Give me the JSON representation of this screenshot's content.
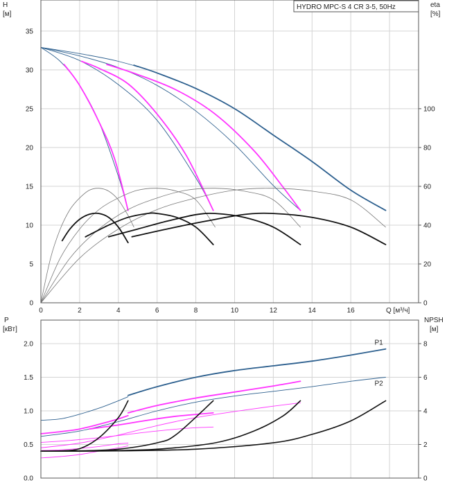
{
  "chart_data": [
    {
      "type": "line",
      "title": "HYDRO MPC-S 4 CR 3-5, 50Hz",
      "ylabel": "H",
      "yunit": "[м]",
      "y2label": "eta",
      "y2unit": "[%]",
      "xlabel": "Q [м³/ч]",
      "xlim": [
        0,
        19.5
      ],
      "ylim": [
        0,
        39
      ],
      "y2lim": [
        0,
        156
      ],
      "xticks": [
        "0",
        "2",
        "4",
        "6",
        "8",
        "10",
        "12",
        "14",
        "16"
      ],
      "yticks": [
        "0",
        "5",
        "10",
        "15",
        "20",
        "25",
        "30",
        "35"
      ],
      "y2ticks": [
        "0",
        "20",
        "40",
        "60",
        "80",
        "100"
      ],
      "grid": true,
      "colors": {
        "head_full": "#2c5f8e",
        "head_duty": "#ff33ff",
        "eta_thin": "#777777",
        "eta_thick": "#111111"
      },
      "series": [
        {
          "kind": "head-thin",
          "x": [
            0,
            2,
            4,
            6,
            8,
            10,
            12,
            14,
            16,
            17.8
          ],
          "y": [
            32.9,
            32.1,
            31.1,
            29.6,
            27.6,
            25.0,
            21.6,
            18.2,
            14.5,
            11.9
          ]
        },
        {
          "kind": "head-thin",
          "x": [
            0,
            2,
            4,
            6,
            8,
            10,
            12,
            13.4
          ],
          "y": [
            32.9,
            31.8,
            30.3,
            28.0,
            24.7,
            20.4,
            15.1,
            11.9
          ]
        },
        {
          "kind": "head-thin",
          "x": [
            0,
            2,
            4,
            6,
            8,
            8.9
          ],
          "y": [
            32.9,
            31.2,
            28.1,
            23.5,
            16.1,
            11.9
          ]
        },
        {
          "kind": "head-thin",
          "x": [
            0,
            1,
            2,
            3,
            4,
            4.5
          ],
          "y": [
            32.9,
            31.1,
            28.0,
            23.3,
            16.3,
            11.9
          ]
        },
        {
          "kind": "head-main",
          "x": [
            4.8,
            6,
            8,
            10,
            12,
            14,
            16,
            17.8
          ],
          "y": [
            30.6,
            29.6,
            27.6,
            25.0,
            21.6,
            18.2,
            14.5,
            11.9
          ]
        },
        {
          "kind": "head-duty",
          "x": [
            3.4,
            5,
            7,
            9,
            11,
            12.5,
            13.4
          ],
          "y": [
            30.7,
            29.4,
            27.4,
            24.3,
            19.6,
            14.9,
            11.9
          ]
        },
        {
          "kind": "head-duty",
          "x": [
            2.1,
            3,
            4.5,
            6,
            7.5,
            8.9
          ],
          "y": [
            31.1,
            30.2,
            28.2,
            24.3,
            19.0,
            11.9
          ]
        },
        {
          "kind": "head-duty",
          "x": [
            1.2,
            2,
            3,
            3.8,
            4.5
          ],
          "y": [
            30.7,
            28.0,
            23.3,
            18.6,
            11.9
          ]
        },
        {
          "kind": "eta-thin",
          "x": [
            0,
            0.5,
            1,
            1.5,
            2,
            2.5,
            3,
            3.5,
            4,
            4.5,
            4.8
          ],
          "y": [
            0,
            23,
            38,
            48,
            54,
            58,
            59,
            57.5,
            53,
            45,
            39
          ]
        },
        {
          "kind": "eta-thin",
          "x": [
            0,
            1,
            2,
            3,
            4,
            5,
            6,
            7,
            8,
            9
          ],
          "y": [
            0,
            23,
            38,
            48,
            54,
            58,
            59,
            57.5,
            53,
            39
          ]
        },
        {
          "kind": "eta-thin",
          "x": [
            0,
            1.5,
            3,
            4.5,
            6,
            7.5,
            9,
            10.5,
            12,
            13.4
          ],
          "y": [
            0,
            23,
            38,
            48,
            54,
            58,
            59,
            57.5,
            53,
            39
          ]
        },
        {
          "kind": "eta-thin",
          "x": [
            0,
            2,
            4,
            6,
            8,
            10,
            12,
            14,
            16,
            17.8
          ],
          "y": [
            0,
            23,
            38,
            48,
            54,
            58,
            59,
            57.5,
            53,
            39
          ]
        },
        {
          "kind": "eta-thick",
          "x": [
            1.1,
            1.5,
            2,
            2.5,
            3,
            3.5,
            4,
            4.5
          ],
          "y": [
            32,
            38,
            43,
            45.6,
            46,
            44,
            39,
            31
          ]
        },
        {
          "kind": "eta-thick",
          "x": [
            2.3,
            3.5,
            4.5,
            5.5,
            6,
            7,
            8,
            8.9
          ],
          "y": [
            34,
            40,
            44,
            46,
            46,
            44,
            39,
            30
          ]
        },
        {
          "kind": "eta-thick",
          "x": [
            3.5,
            5,
            6.5,
            8,
            9,
            10.5,
            12,
            13.4
          ],
          "y": [
            34,
            38,
            42,
            45.4,
            46,
            44,
            39,
            30
          ]
        },
        {
          "kind": "eta-thick",
          "x": [
            4.7,
            6.5,
            8.5,
            10.5,
            12,
            14,
            16,
            17.8
          ],
          "y": [
            34,
            38,
            42,
            45.5,
            46,
            44,
            39,
            30
          ]
        }
      ]
    },
    {
      "type": "line",
      "ylabel": "P",
      "yunit": "[кВт]",
      "y2label": "NPSH",
      "y2unit": "[м]",
      "xlim": [
        0,
        19.5
      ],
      "ylim": [
        0,
        2.35
      ],
      "y2lim": [
        0,
        9.4
      ],
      "yticks": [
        "0.0",
        "0.5",
        "1.0",
        "1.5",
        "2.0"
      ],
      "y2ticks": [
        "0",
        "2",
        "4",
        "6",
        "8"
      ],
      "grid": true,
      "series": [
        {
          "name": "P1",
          "kind": "p-main",
          "x": [
            4.5,
            6,
            8,
            10,
            12,
            14,
            16,
            17.8
          ],
          "y": [
            1.23,
            1.36,
            1.5,
            1.6,
            1.67,
            1.74,
            1.83,
            1.92
          ]
        },
        {
          "kind": "p-thin",
          "x": [
            0,
            1,
            2,
            3,
            4,
            4.5
          ],
          "y": [
            0.86,
            0.88,
            0.95,
            1.04,
            1.15,
            1.21
          ]
        },
        {
          "name": "P2",
          "kind": "p-thin",
          "x": [
            0,
            2,
            4,
            6,
            8,
            10,
            12,
            14,
            16,
            17.8
          ],
          "y": [
            0.62,
            0.7,
            0.84,
            1.0,
            1.13,
            1.22,
            1.29,
            1.36,
            1.44,
            1.5
          ]
        },
        {
          "kind": "p-duty",
          "x": [
            4.5,
            6,
            8,
            10,
            12,
            13.4
          ],
          "y": [
            0.97,
            1.08,
            1.19,
            1.28,
            1.37,
            1.44
          ]
        },
        {
          "kind": "p-duty",
          "x": [
            0,
            1,
            2,
            3,
            4,
            4.5
          ],
          "y": [
            0.66,
            0.69,
            0.73,
            0.8,
            0.88,
            0.93
          ]
        },
        {
          "kind": "p-duty",
          "x": [
            2.5,
            4,
            5.5,
            7,
            8.9
          ],
          "y": [
            0.73,
            0.79,
            0.86,
            0.92,
            0.97
          ]
        },
        {
          "kind": "p-duty-thin",
          "x": [
            0,
            2,
            4,
            6,
            8,
            10,
            12,
            13.4
          ],
          "y": [
            0.45,
            0.52,
            0.64,
            0.78,
            0.9,
            0.99,
            1.07,
            1.12
          ]
        },
        {
          "kind": "p-duty-thin",
          "x": [
            0,
            1.5,
            3,
            4.5,
            6,
            7.5,
            8.9
          ],
          "y": [
            0.53,
            0.56,
            0.6,
            0.65,
            0.7,
            0.74,
            0.76
          ]
        },
        {
          "kind": "p-duty-thin",
          "x": [
            0,
            1,
            2,
            3,
            4,
            4.5
          ],
          "y": [
            0.41,
            0.42,
            0.44,
            0.47,
            0.51,
            0.52
          ]
        },
        {
          "kind": "p-duty-thin",
          "x": [
            0,
            1,
            2,
            3,
            4,
            4.5
          ],
          "y": [
            0.3,
            0.32,
            0.35,
            0.4,
            0.45,
            0.48
          ]
        },
        {
          "kind": "npsh",
          "x": [
            0,
            1,
            2,
            3,
            4,
            4.5
          ],
          "y2": [
            1.6,
            1.62,
            1.75,
            2.4,
            3.6,
            4.6
          ]
        },
        {
          "kind": "npsh",
          "x": [
            0,
            2,
            4,
            6,
            7,
            8.9
          ],
          "y2": [
            1.6,
            1.62,
            1.72,
            2.1,
            2.6,
            4.6
          ]
        },
        {
          "kind": "npsh",
          "x": [
            0,
            3,
            6,
            9,
            11,
            12.5,
            13.4
          ],
          "y2": [
            1.6,
            1.62,
            1.72,
            2.1,
            2.8,
            3.7,
            4.6
          ]
        },
        {
          "kind": "npsh",
          "x": [
            0,
            4,
            8,
            12,
            14,
            16,
            17.8
          ],
          "y2": [
            1.6,
            1.62,
            1.72,
            2.1,
            2.6,
            3.4,
            4.6
          ]
        }
      ]
    }
  ]
}
